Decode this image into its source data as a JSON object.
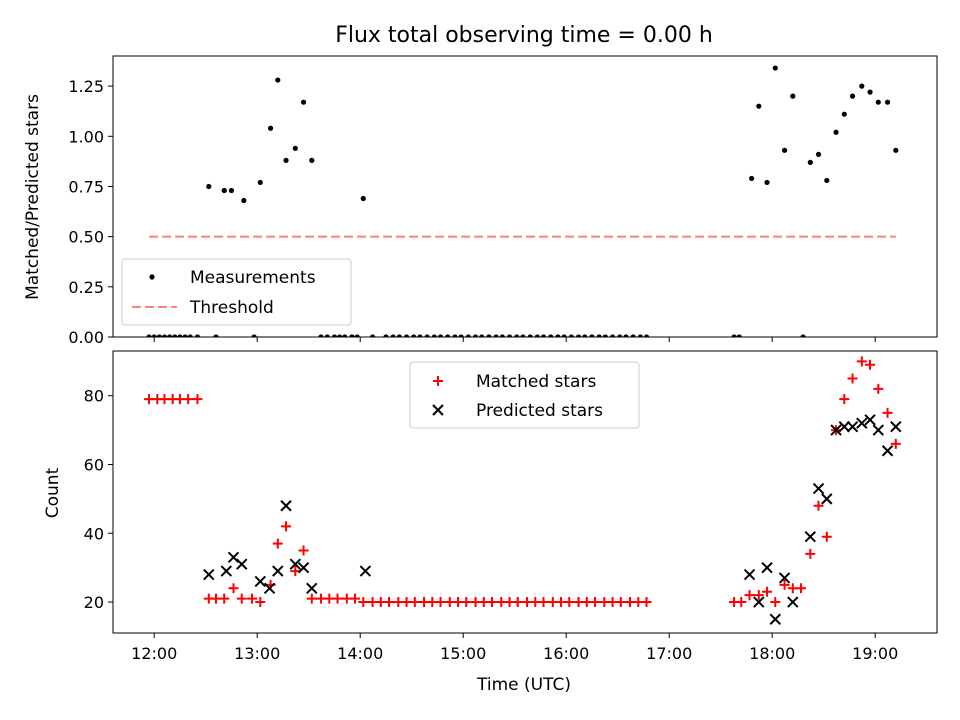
{
  "chart_data": [
    {
      "type": "scatter",
      "title": "Flux total observing time = 0.00 h",
      "xlabel": "",
      "ylabel": "Matched/Predicted stars",
      "xlim": [
        11.6,
        19.6
      ],
      "ylim": [
        0.0,
        1.4
      ],
      "yticks": [
        "0.00",
        "0.25",
        "0.50",
        "0.75",
        "1.00",
        "1.25"
      ],
      "ytick_values": [
        0.0,
        0.25,
        0.5,
        0.75,
        1.0,
        1.25
      ],
      "grid": false,
      "legend_position": "lower-left",
      "series": [
        {
          "name": "Measurements",
          "color": "#000000",
          "marker": "dot",
          "points": [
            [
              11.95,
              0
            ],
            [
              12.0,
              0
            ],
            [
              12.05,
              0
            ],
            [
              12.1,
              0
            ],
            [
              12.15,
              0
            ],
            [
              12.2,
              0
            ],
            [
              12.25,
              0
            ],
            [
              12.3,
              0
            ],
            [
              12.35,
              0
            ],
            [
              12.42,
              0
            ],
            [
              12.53,
              0.75
            ],
            [
              12.6,
              0
            ],
            [
              12.68,
              0.73
            ],
            [
              12.75,
              0.73
            ],
            [
              12.87,
              0.68
            ],
            [
              12.97,
              0
            ],
            [
              13.03,
              0.77
            ],
            [
              13.13,
              1.04
            ],
            [
              13.2,
              1.28
            ],
            [
              13.28,
              0.88
            ],
            [
              13.37,
              0.94
            ],
            [
              13.45,
              1.17
            ],
            [
              13.53,
              0.88
            ],
            [
              13.62,
              0
            ],
            [
              13.68,
              0
            ],
            [
              13.75,
              0
            ],
            [
              13.8,
              0
            ],
            [
              13.85,
              0
            ],
            [
              13.92,
              0
            ],
            [
              13.97,
              0
            ],
            [
              14.03,
              0.69
            ],
            [
              14.12,
              0
            ],
            [
              14.25,
              0
            ],
            [
              14.32,
              0
            ],
            [
              14.38,
              0
            ],
            [
              14.45,
              0
            ],
            [
              14.52,
              0
            ],
            [
              14.58,
              0
            ],
            [
              14.65,
              0
            ],
            [
              14.72,
              0
            ],
            [
              14.78,
              0
            ],
            [
              14.85,
              0
            ],
            [
              14.92,
              0
            ],
            [
              14.98,
              0
            ],
            [
              15.05,
              0
            ],
            [
              15.12,
              0
            ],
            [
              15.18,
              0
            ],
            [
              15.25,
              0
            ],
            [
              15.32,
              0
            ],
            [
              15.38,
              0
            ],
            [
              15.45,
              0
            ],
            [
              15.52,
              0
            ],
            [
              15.58,
              0
            ],
            [
              15.65,
              0
            ],
            [
              15.72,
              0
            ],
            [
              15.78,
              0
            ],
            [
              15.85,
              0
            ],
            [
              15.92,
              0
            ],
            [
              15.98,
              0
            ],
            [
              16.05,
              0
            ],
            [
              16.12,
              0
            ],
            [
              16.18,
              0
            ],
            [
              16.25,
              0
            ],
            [
              16.32,
              0
            ],
            [
              16.38,
              0
            ],
            [
              16.45,
              0
            ],
            [
              16.52,
              0
            ],
            [
              16.58,
              0
            ],
            [
              16.65,
              0
            ],
            [
              16.72,
              0
            ],
            [
              16.78,
              0
            ],
            [
              17.63,
              0
            ],
            [
              17.68,
              0
            ],
            [
              17.8,
              0.79
            ],
            [
              17.87,
              1.15
            ],
            [
              17.95,
              0.77
            ],
            [
              18.03,
              1.34
            ],
            [
              18.12,
              0.93
            ],
            [
              18.2,
              1.2
            ],
            [
              18.3,
              0
            ],
            [
              18.37,
              0.87
            ],
            [
              18.45,
              0.91
            ],
            [
              18.53,
              0.78
            ],
            [
              18.62,
              1.02
            ],
            [
              18.7,
              1.11
            ],
            [
              18.78,
              1.2
            ],
            [
              18.87,
              1.25
            ],
            [
              18.95,
              1.22
            ],
            [
              19.03,
              1.17
            ],
            [
              19.12,
              1.17
            ],
            [
              19.2,
              0.93
            ]
          ]
        },
        {
          "name": "Threshold",
          "color": "#ff7f7f",
          "style": "dashed",
          "x": [
            11.95,
            19.2
          ],
          "y": [
            0.5,
            0.5
          ]
        }
      ]
    },
    {
      "type": "scatter",
      "title": "",
      "xlabel": "Time (UTC)",
      "ylabel": "Count",
      "xlim": [
        11.6,
        19.6
      ],
      "ylim": [
        11,
        93
      ],
      "yticks": [
        "20",
        "40",
        "60",
        "80"
      ],
      "ytick_values": [
        20,
        40,
        60,
        80
      ],
      "xticks": [
        "12:00",
        "13:00",
        "14:00",
        "15:00",
        "16:00",
        "17:00",
        "18:00",
        "19:00"
      ],
      "xtick_values": [
        12,
        13,
        14,
        15,
        16,
        17,
        18,
        19
      ],
      "grid": false,
      "legend_position": "upper-center",
      "series": [
        {
          "name": "Matched stars",
          "color": "#ff0000",
          "marker": "plus",
          "points": [
            [
              11.95,
              79
            ],
            [
              12.03,
              79
            ],
            [
              12.1,
              79
            ],
            [
              12.18,
              79
            ],
            [
              12.25,
              79
            ],
            [
              12.33,
              79
            ],
            [
              12.42,
              79
            ],
            [
              12.53,
              21
            ],
            [
              12.6,
              21
            ],
            [
              12.68,
              21
            ],
            [
              12.77,
              24
            ],
            [
              12.85,
              21
            ],
            [
              12.95,
              21
            ],
            [
              13.03,
              20
            ],
            [
              13.13,
              25
            ],
            [
              13.2,
              37
            ],
            [
              13.28,
              42
            ],
            [
              13.37,
              29
            ],
            [
              13.45,
              35
            ],
            [
              13.53,
              21
            ],
            [
              13.62,
              21
            ],
            [
              13.7,
              21
            ],
            [
              13.78,
              21
            ],
            [
              13.87,
              21
            ],
            [
              13.95,
              21
            ],
            [
              14.03,
              20
            ],
            [
              14.12,
              20
            ],
            [
              14.2,
              20
            ],
            [
              14.28,
              20
            ],
            [
              14.37,
              20
            ],
            [
              14.45,
              20
            ],
            [
              14.53,
              20
            ],
            [
              14.62,
              20
            ],
            [
              14.7,
              20
            ],
            [
              14.78,
              20
            ],
            [
              14.87,
              20
            ],
            [
              14.95,
              20
            ],
            [
              15.03,
              20
            ],
            [
              15.12,
              20
            ],
            [
              15.2,
              20
            ],
            [
              15.28,
              20
            ],
            [
              15.37,
              20
            ],
            [
              15.45,
              20
            ],
            [
              15.53,
              20
            ],
            [
              15.62,
              20
            ],
            [
              15.7,
              20
            ],
            [
              15.78,
              20
            ],
            [
              15.87,
              20
            ],
            [
              15.95,
              20
            ],
            [
              16.03,
              20
            ],
            [
              16.12,
              20
            ],
            [
              16.2,
              20
            ],
            [
              16.28,
              20
            ],
            [
              16.37,
              20
            ],
            [
              16.45,
              20
            ],
            [
              16.53,
              20
            ],
            [
              16.62,
              20
            ],
            [
              16.7,
              20
            ],
            [
              16.78,
              20
            ],
            [
              17.63,
              20
            ],
            [
              17.7,
              20
            ],
            [
              17.78,
              22
            ],
            [
              17.87,
              22
            ],
            [
              17.95,
              23
            ],
            [
              18.03,
              20
            ],
            [
              18.12,
              25
            ],
            [
              18.2,
              24
            ],
            [
              18.28,
              24
            ],
            [
              18.37,
              34
            ],
            [
              18.45,
              48
            ],
            [
              18.53,
              39
            ],
            [
              18.62,
              70
            ],
            [
              18.7,
              79
            ],
            [
              18.78,
              85
            ],
            [
              18.87,
              90
            ],
            [
              18.95,
              89
            ],
            [
              19.03,
              82
            ],
            [
              19.12,
              75
            ],
            [
              19.2,
              66
            ]
          ]
        },
        {
          "name": "Predicted stars",
          "color": "#000000",
          "marker": "x",
          "points": [
            [
              12.53,
              28
            ],
            [
              12.7,
              29
            ],
            [
              12.77,
              33
            ],
            [
              12.85,
              31
            ],
            [
              13.03,
              26
            ],
            [
              13.12,
              24
            ],
            [
              13.2,
              29
            ],
            [
              13.28,
              48
            ],
            [
              13.37,
              31
            ],
            [
              13.45,
              30
            ],
            [
              13.53,
              24
            ],
            [
              14.05,
              29
            ],
            [
              17.78,
              28
            ],
            [
              17.87,
              20
            ],
            [
              17.95,
              30
            ],
            [
              18.03,
              15
            ],
            [
              18.12,
              27
            ],
            [
              18.2,
              20
            ],
            [
              18.37,
              39
            ],
            [
              18.45,
              53
            ],
            [
              18.53,
              50
            ],
            [
              18.62,
              70
            ],
            [
              18.7,
              71
            ],
            [
              18.78,
              71
            ],
            [
              18.87,
              72
            ],
            [
              18.95,
              73
            ],
            [
              19.03,
              70
            ],
            [
              19.12,
              64
            ],
            [
              19.2,
              71
            ]
          ]
        }
      ]
    }
  ]
}
